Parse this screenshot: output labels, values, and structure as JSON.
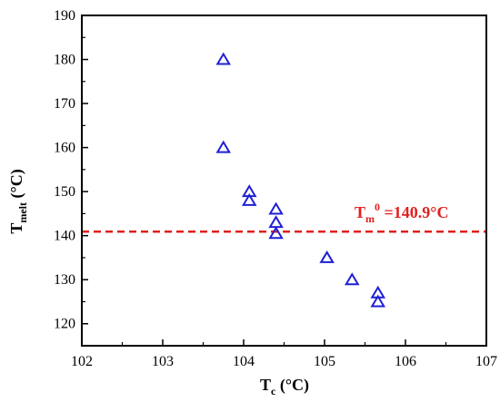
{
  "chart_data": {
    "type": "scatter",
    "xlabel": {
      "main": "T",
      "sub": "c",
      "unit": " (°C)"
    },
    "ylabel": {
      "main": "T",
      "sub": "melt",
      "unit": " (°C)"
    },
    "xlim": [
      102,
      107
    ],
    "ylim": [
      115,
      190
    ],
    "x_ticks": [
      102,
      103,
      104,
      105,
      106,
      107
    ],
    "y_ticks": [
      120,
      130,
      140,
      150,
      160,
      170,
      180,
      190
    ],
    "grid": false,
    "legend": "none",
    "series": [
      {
        "marker": "triangle-open",
        "color": "#1f1fd6",
        "points": [
          [
            103.75,
            180
          ],
          [
            103.75,
            160
          ],
          [
            104.07,
            150
          ],
          [
            104.07,
            148
          ],
          [
            104.4,
            146
          ],
          [
            104.4,
            143
          ],
          [
            104.4,
            140.5
          ],
          [
            105.03,
            135
          ],
          [
            105.34,
            130
          ],
          [
            105.66,
            127
          ],
          [
            105.66,
            125
          ]
        ]
      }
    ],
    "reference_line": {
      "orientation": "horizontal",
      "y": 140.9,
      "style": "dashed",
      "color": "#e02020"
    },
    "annotation": {
      "main": "T",
      "sub": "m",
      "sup": "0",
      "rest": " =140.9°C",
      "color": "#e02020"
    }
  }
}
